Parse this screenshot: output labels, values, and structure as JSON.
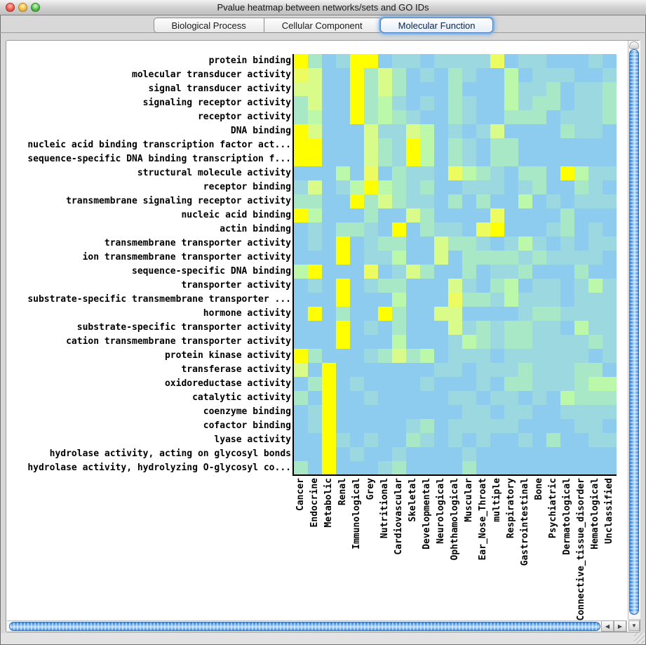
{
  "window": {
    "title": "Pvalue heatmap between networks/sets and GO IDs",
    "buttons": {
      "close": "close",
      "minimize": "minimize",
      "zoom": "zoom"
    }
  },
  "tabs": [
    {
      "label": "Biological Process",
      "selected": false
    },
    {
      "label": "Cellular Component",
      "selected": false
    },
    {
      "label": "Molecular Function",
      "selected": true
    }
  ],
  "chart_data": {
    "type": "heatmap",
    "title": "Pvalue heatmap between networks/sets and GO IDs",
    "rows": [
      "protein binding",
      "molecular transducer activity",
      "signal transducer activity",
      "signaling receptor activity",
      "receptor activity",
      "DNA binding",
      "nucleic acid binding transcription factor act...",
      "sequence-specific DNA binding transcription f...",
      "structural molecule activity",
      "receptor binding",
      "transmembrane signaling receptor activity",
      "nucleic acid binding",
      "actin binding",
      "transmembrane transporter activity",
      "ion transmembrane transporter activity",
      "sequence-specific DNA binding",
      "transporter activity",
      "substrate-specific transmembrane transporter ...",
      "hormone activity",
      "substrate-specific transporter activity",
      "cation transmembrane transporter activity",
      "protein kinase activity",
      "transferase activity",
      "oxidoreductase activity",
      "catalytic activity",
      "coenzyme binding",
      "cofactor binding",
      "lyase activity",
      "hydrolase activity, acting on glycosyl bonds",
      "hydrolase activity, hydrolyzing O-glycosyl co..."
    ],
    "columns": [
      "Cancer",
      "Endocrine",
      "Metabolic",
      "Renal",
      "Immunological",
      "Grey",
      "Nutritional",
      "Cardiovascular",
      "Skeletal",
      "Developmental",
      "Neurological",
      "Ophthamological",
      "Muscular",
      "Ear_Nose_Throat",
      "multiple",
      "Respiratory",
      "Gastrointestinal",
      "Bone",
      "Psychiatric",
      "Dermatological",
      "Connective_tissue_disorder",
      "Hematological",
      "Unclassified"
    ],
    "palette": {
      "0": "#8DCCEE",
      "1": "#9CD8DF",
      "2": "#A9E8C6",
      "3": "#BCF8AA",
      "4": "#D9FB8A",
      "5": "#EBFB60",
      "6": "#FFFF00"
    },
    "grid": [
      "62016601101111501100010",
      "54006242010210030111001",
      "44006242000200031120112",
      "24006231010210031220112",
      "23006232100210022201112",
      "64000411430101400002110",
      "66000421630210220000000",
      "66000421630210220000000",
      "00030502110532102206311",
      "14013632120011101200210",
      "22006242110202003010111",
      "63000200420000500002000",
      "01022106021105600012010",
      "01060122004221013101011",
      "00060113004022221211110",
      "36000501420020112000200",
      "01060122000410230110131",
      "00060003000522131110111",
      "06020062004400001221111",
      "00060102000412122110311",
      "00060003000132122111121",
      "62000124230111011111101",
      "40600000001101112111220",
      "02601000010001022111233",
      "20600100000110110103222",
      "01600000000011011001111",
      "01600000120111110000110",
      "00610100210101001020011",
      "00601001000010000000000",
      "20600012000020000000000"
    ],
    "cell_size_px": 20,
    "axis_color": "#000000"
  },
  "scrollbars": {
    "down_arrow": "▼",
    "left_arrow": "◀",
    "right_arrow": "▶"
  }
}
